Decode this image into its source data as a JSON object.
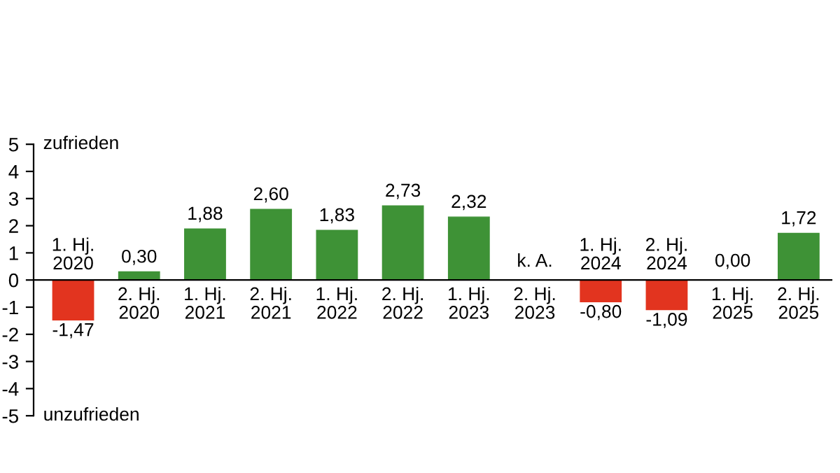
{
  "chart_data": {
    "type": "bar",
    "categories": [
      "1. Hj.\n2020",
      "2. Hj.\n2020",
      "1. Hj.\n2021",
      "2. Hj.\n2021",
      "1. Hj.\n2022",
      "2. Hj.\n2022",
      "1. Hj.\n2023",
      "2. Hj.\n2023",
      "1. Hj.\n2024",
      "2. Hj.\n2024",
      "1. Hj.\n2025",
      "2. Hj.\n2025"
    ],
    "values": [
      -1.47,
      0.3,
      1.88,
      2.6,
      1.83,
      2.73,
      2.32,
      null,
      -0.8,
      -1.09,
      0.0,
      1.72
    ],
    "colors": [
      "#e2341f",
      "#3e9236",
      "#3e9236",
      "#3e9236",
      "#3e9236",
      "#3e9236",
      "#3e9236",
      "#3e9236",
      "#e2341f",
      "#e2341f",
      "#3e9236",
      "#3e9236"
    ],
    "value_labels": [
      "-1,47",
      "0,30",
      "1,88",
      "2,60",
      "1,83",
      "2,73",
      "2,32",
      "k. A.",
      "-0,80",
      "-1,09",
      "0,00",
      "1,72"
    ],
    "ylim": [
      -5,
      5
    ],
    "yticks": [
      -5,
      -4,
      -3,
      -2,
      -1,
      0,
      1,
      2,
      3,
      4,
      5
    ],
    "annotations": [
      "zufrieden",
      "unzufrieden"
    ],
    "grid": false,
    "legend": false
  }
}
